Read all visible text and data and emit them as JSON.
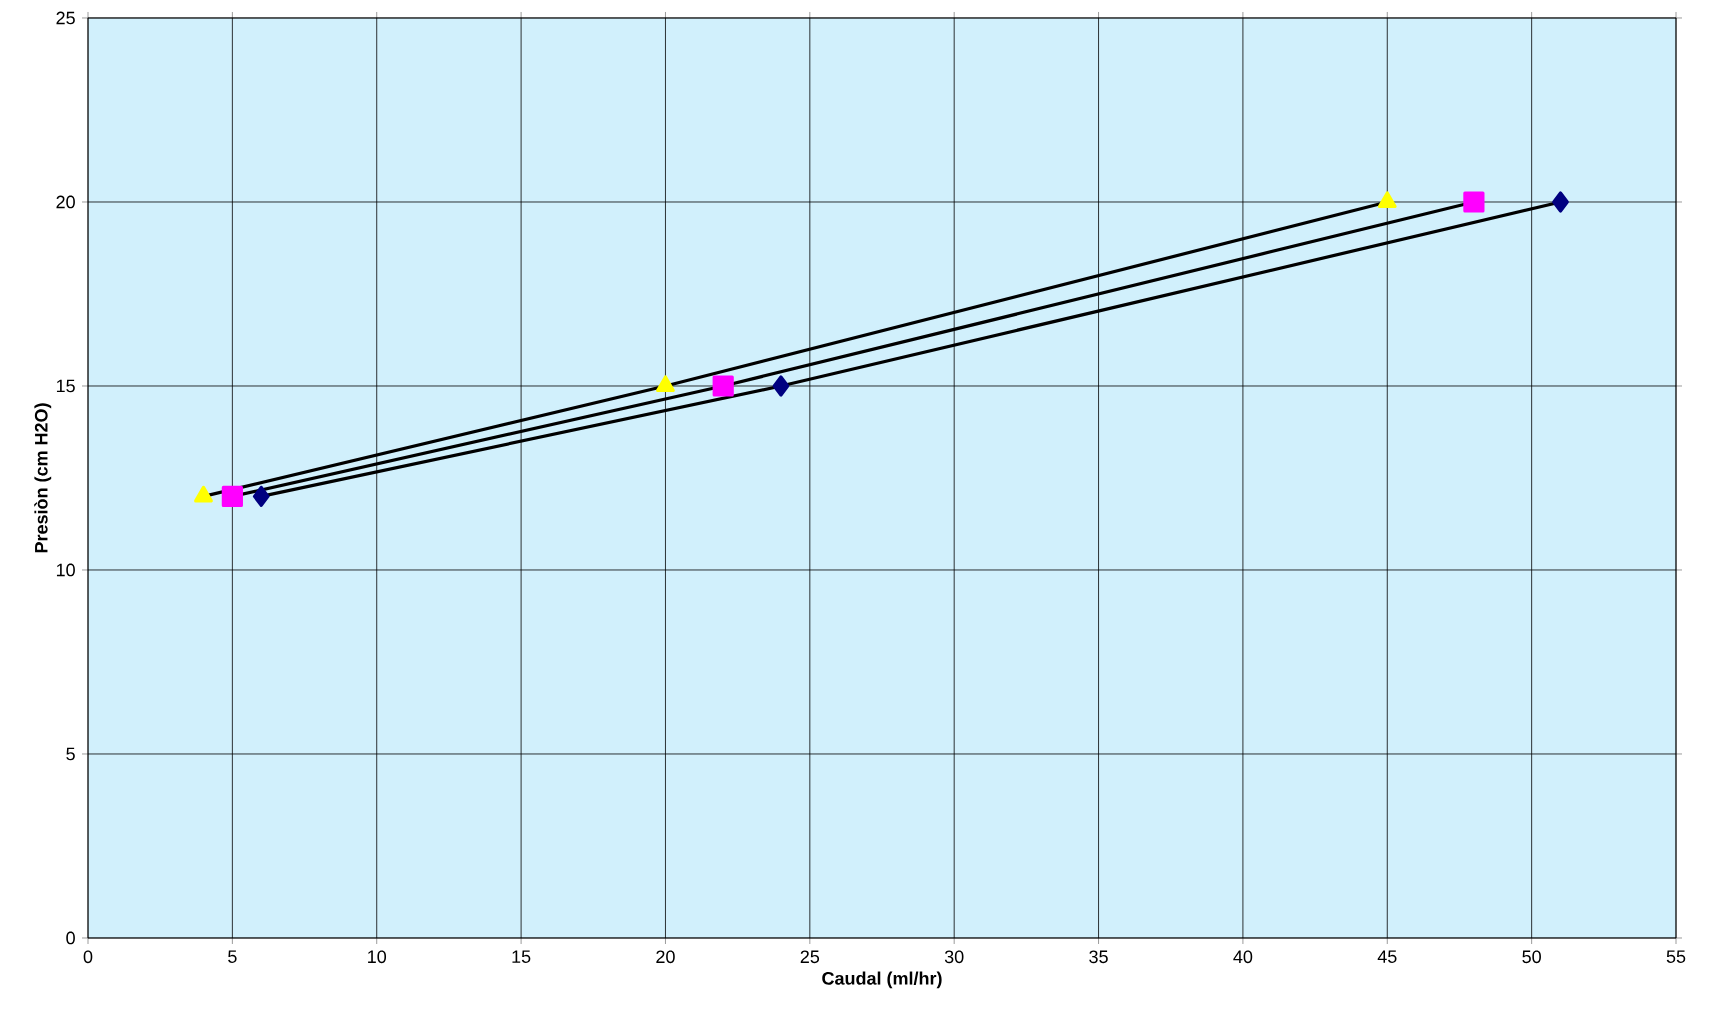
{
  "chart_data": {
    "type": "line",
    "xlabel": "Caudal (ml/hr)",
    "ylabel": "Presiòn (cm H2O)",
    "xlim": [
      0,
      55
    ],
    "xticks": [
      0,
      5,
      10,
      15,
      20,
      25,
      30,
      35,
      40,
      45,
      50,
      55
    ],
    "ylim": [
      0,
      25
    ],
    "yticks": [
      0,
      5,
      10,
      15,
      20,
      25
    ],
    "grid": true,
    "series": [
      {
        "color": "#ffff00",
        "marker": "triangle",
        "x": [
          4,
          20,
          45
        ],
        "values": [
          12,
          15,
          20
        ]
      },
      {
        "color": "#ff00ff",
        "marker": "square",
        "x": [
          5,
          22,
          48
        ],
        "values": [
          12,
          15,
          20
        ]
      },
      {
        "color": "#000080",
        "marker": "diamond",
        "x": [
          6,
          24,
          51
        ],
        "values": [
          12,
          15,
          20
        ]
      }
    ]
  }
}
